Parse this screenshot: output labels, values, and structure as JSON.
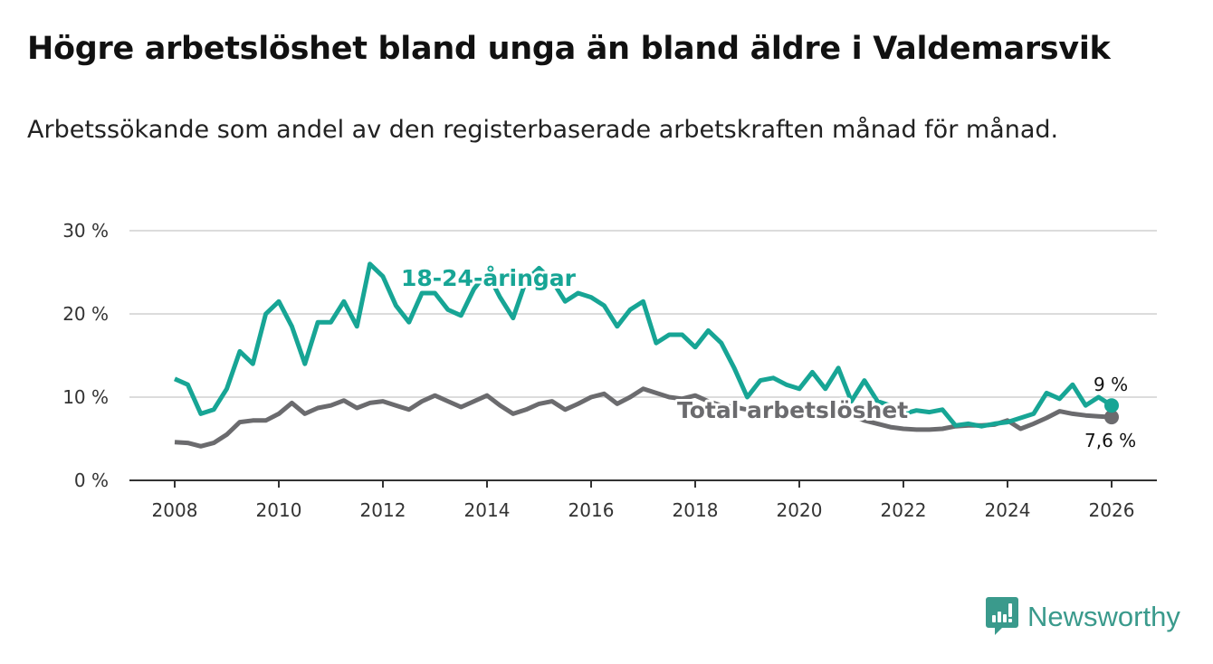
{
  "chart_data": {
    "type": "line",
    "title": "Högre arbetslöshet bland unga än bland äldre i Valdemarsvik",
    "subtitle": "Arbetssökande som andel av den registerbaserade arbetskraften månad för månad.",
    "xlabel": "",
    "ylabel": "",
    "x_start": 2008,
    "x_step": 0.25,
    "xlim": [
      2007.2,
      2026.9
    ],
    "ylim": [
      0,
      30
    ],
    "x_ticks": [
      "2008",
      "2010",
      "2012",
      "2014",
      "2016",
      "2018",
      "2020",
      "2022",
      "2024",
      "2026"
    ],
    "y_ticks": [
      "0 %",
      "10 %",
      "20 %",
      "30 %"
    ],
    "y_tick_values": [
      0,
      10,
      20,
      30
    ],
    "grid": true,
    "series": [
      {
        "name": "18-24-åringar",
        "color": "#17a595",
        "values": [
          12.2,
          11.5,
          8,
          8.5,
          11,
          15.5,
          14,
          20,
          21.5,
          18.5,
          14,
          19,
          19,
          21.5,
          18.5,
          26,
          24.5,
          21,
          19,
          22.5,
          22.5,
          20.5,
          19.8,
          23,
          25,
          22,
          19.5,
          24,
          25.5,
          24,
          21.5,
          22.5,
          22,
          21,
          18.5,
          20.5,
          21.5,
          16.5,
          17.5,
          17.5,
          16,
          18,
          16.5,
          13.5,
          10,
          12,
          12.3,
          11.5,
          11,
          13,
          11,
          13.5,
          9.5,
          12,
          9.5,
          9,
          8,
          8.4,
          8.2,
          8.5,
          6.6,
          6.8,
          6.5,
          6.8,
          7,
          7.5,
          8,
          10.5,
          9.8,
          11.5,
          9,
          10,
          9
        ],
        "end_label": "9 %"
      },
      {
        "name": "Total arbetslöshet",
        "color": "#6b6b6e",
        "values": [
          4.6,
          4.5,
          4.1,
          4.5,
          5.5,
          7,
          7.2,
          7.2,
          8,
          9.3,
          8,
          8.7,
          9,
          9.6,
          8.7,
          9.3,
          9.5,
          9,
          8.5,
          9.5,
          10.2,
          9.5,
          8.8,
          9.5,
          10.2,
          9,
          8,
          8.5,
          9.2,
          9.5,
          8.5,
          9.2,
          10,
          10.4,
          9.2,
          10,
          11,
          10.5,
          10,
          9.8,
          10.2,
          9.5,
          9,
          8.8,
          8.5,
          8.5,
          8.7,
          8.4,
          8.3,
          8.5,
          8.5,
          8.2,
          7.8,
          7.2,
          6.8,
          6.4,
          6.2,
          6.1,
          6.1,
          6.2,
          6.5,
          6.6,
          6.6,
          6.7,
          7.2,
          6.2,
          6.8,
          7.5,
          8.3,
          8.0,
          7.8,
          7.7,
          7.6
        ],
        "end_label": "7,6 %"
      }
    ]
  },
  "brand": {
    "name": "Newsworthy",
    "icon": "newsworthy-logo-icon",
    "color": "#3a9a8c"
  }
}
